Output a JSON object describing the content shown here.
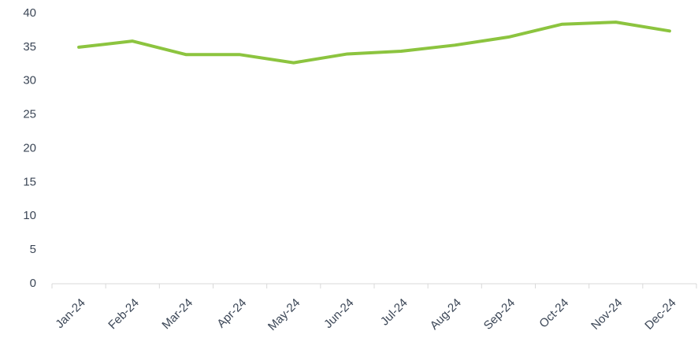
{
  "chart_data": {
    "type": "line",
    "categories": [
      "Jan-24",
      "Feb-24",
      "Mar-24",
      "Apr-24",
      "May-24",
      "Jun-24",
      "Jul-24",
      "Aug-24",
      "Sep-24",
      "Oct-24",
      "Nov-24",
      "Dec-24"
    ],
    "series": [
      {
        "color": "#8cc43f",
        "values": [
          35,
          35.9,
          33.9,
          33.9,
          32.7,
          34,
          34.4,
          35.3,
          36.5,
          38.4,
          38.7,
          37.4
        ]
      }
    ],
    "ylim": [
      0,
      40
    ],
    "yticks": [
      0,
      5,
      10,
      15,
      20,
      25,
      30,
      35,
      40
    ],
    "grid": false
  }
}
